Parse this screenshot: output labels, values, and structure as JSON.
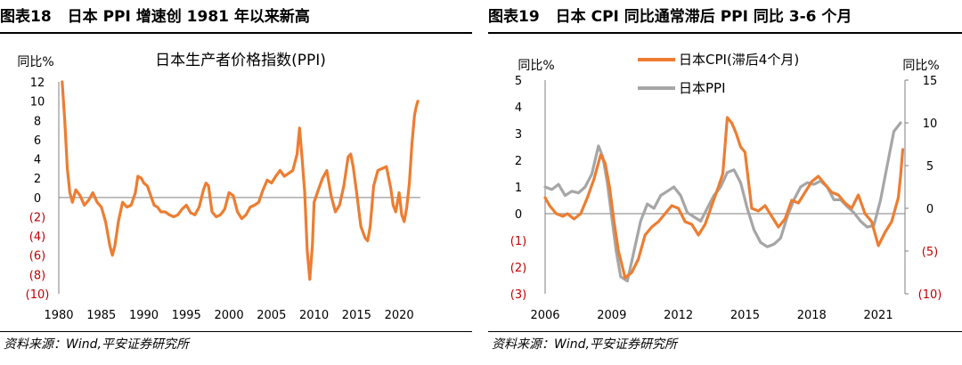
{
  "left": {
    "figure_label": "图表18",
    "title": "日本 PPI 增速创 1981 年以来新高",
    "source": "资料来源：Wind,平安证券研究所"
  },
  "right": {
    "figure_label": "图表19",
    "title": "日本 CPI 同比通常滞后 PPI 同比 3-6 个月",
    "source": "资料来源：Wind,平安证券研究所"
  },
  "chart_data": [
    {
      "type": "line",
      "title": "日本生产者价格指数(PPI)",
      "ylabel": "同比%",
      "xlabel": "",
      "ylim": [
        -10,
        12
      ],
      "xlim": [
        1980,
        2022.5
      ],
      "yticks": [
        12,
        10,
        8,
        6,
        4,
        2,
        0,
        -2,
        -4,
        -6,
        -8,
        -10
      ],
      "ytick_labels": [
        "12",
        "10",
        "8",
        "6",
        "4",
        "2",
        "0",
        "(2)",
        "(4)",
        "(6)",
        "(8)",
        "(10)"
      ],
      "xticks": [
        1980,
        1985,
        1990,
        1995,
        2000,
        2005,
        2010,
        2015,
        2020
      ],
      "xtick_labels": [
        "1980",
        "1985",
        "1990",
        "1995",
        "2000",
        "2005",
        "2010",
        "2015",
        "2020"
      ],
      "series": [
        {
          "name": "",
          "color": "#ed7d31",
          "x": [
            1980.4,
            1980.7,
            1981.0,
            1981.3,
            1981.6,
            1982.0,
            1982.5,
            1983.0,
            1983.5,
            1984.0,
            1984.5,
            1985.0,
            1985.5,
            1986.0,
            1986.3,
            1986.6,
            1987.0,
            1987.5,
            1988.0,
            1988.5,
            1989.0,
            1989.3,
            1989.7,
            1990.0,
            1990.4,
            1990.8,
            1991.2,
            1991.6,
            1992.0,
            1992.5,
            1993.0,
            1993.5,
            1994.0,
            1994.5,
            1995.0,
            1995.5,
            1996.0,
            1996.5,
            1997.0,
            1997.3,
            1997.6,
            1998.0,
            1998.5,
            1999.0,
            1999.5,
            2000.0,
            2000.5,
            2001.0,
            2001.5,
            2002.0,
            2002.5,
            2003.0,
            2003.5,
            2004.0,
            2004.5,
            2005.0,
            2005.5,
            2006.0,
            2006.5,
            2007.0,
            2007.5,
            2008.0,
            2008.3,
            2008.6,
            2008.9,
            2009.2,
            2009.5,
            2009.8,
            2010.0,
            2010.5,
            2011.0,
            2011.5,
            2012.0,
            2012.5,
            2013.0,
            2013.5,
            2014.0,
            2014.3,
            2014.6,
            2015.0,
            2015.5,
            2016.0,
            2016.3,
            2016.6,
            2017.0,
            2017.5,
            2018.0,
            2018.5,
            2019.0,
            2019.3,
            2019.6,
            2020.0,
            2020.3,
            2020.6,
            2020.9,
            2021.2,
            2021.5,
            2021.8,
            2022.0,
            2022.2
          ],
          "y": [
            12,
            8,
            3,
            0.5,
            -0.5,
            0.8,
            0.2,
            -0.8,
            -0.3,
            0.5,
            -0.5,
            -1,
            -2.5,
            -5,
            -6,
            -5,
            -2.5,
            -0.5,
            -1,
            -0.8,
            0.5,
            2.2,
            2.0,
            1.5,
            1.2,
            0.2,
            -0.8,
            -1,
            -1.5,
            -1.5,
            -1.8,
            -2,
            -1.8,
            -1.2,
            -0.8,
            -1.6,
            -1.8,
            -1.0,
            0.8,
            1.5,
            1.2,
            -1.5,
            -2.0,
            -1.8,
            -1.2,
            0.5,
            0.2,
            -1.5,
            -2.2,
            -1.8,
            -1,
            -0.8,
            -0.5,
            0.8,
            1.8,
            1.5,
            2.2,
            2.8,
            2.2,
            2.5,
            2.8,
            4.5,
            7.2,
            4.0,
            0.5,
            -5.5,
            -8.5,
            -5,
            -0.5,
            0.8,
            2.0,
            2.8,
            0.2,
            -1.5,
            -0.8,
            1.2,
            4.2,
            4.5,
            3.2,
            0.5,
            -3,
            -4.2,
            -4.5,
            -3.0,
            1.2,
            2.8,
            3.0,
            3.2,
            1.0,
            -0.8,
            -1.5,
            0.5,
            -1.8,
            -2.5,
            -1.0,
            1.5,
            5.5,
            8.5,
            9.4,
            10.0
          ]
        }
      ]
    },
    {
      "type": "line",
      "ylabel_left": "同比%",
      "ylabel_right": "同比%",
      "xlabel": "",
      "ylim_left": [
        -3,
        5
      ],
      "ylim_right": [
        -10,
        15
      ],
      "xlim": [
        2006,
        2022.2
      ],
      "yticks_left": [
        5,
        4,
        3,
        2,
        1,
        0,
        -1,
        -2,
        -3
      ],
      "ytick_labels_left": [
        "5",
        "4",
        "3",
        "2",
        "1",
        "0",
        "(1)",
        "(2)",
        "(3)"
      ],
      "yticks_right": [
        15,
        10,
        5,
        0,
        -5,
        -10
      ],
      "ytick_labels_right": [
        "15",
        "10",
        "5",
        "0",
        "(5)",
        "(10)"
      ],
      "xticks": [
        2006,
        2009,
        2012,
        2015,
        2018,
        2021
      ],
      "xtick_labels": [
        "2006",
        "2009",
        "2012",
        "2015",
        "2018",
        "2021"
      ],
      "legend": "top-left",
      "series": [
        {
          "name": "日本CPI(滞后4个月)",
          "axis": "left",
          "color": "#ed7d31",
          "x": [
            2006.0,
            2006.2,
            2006.5,
            2006.8,
            2007.0,
            2007.3,
            2007.6,
            2007.9,
            2008.2,
            2008.5,
            2008.7,
            2008.9,
            2009.1,
            2009.3,
            2009.6,
            2009.9,
            2010.2,
            2010.5,
            2010.8,
            2011.1,
            2011.4,
            2011.7,
            2012.0,
            2012.3,
            2012.6,
            2012.9,
            2013.2,
            2013.5,
            2013.8,
            2014.0,
            2014.2,
            2014.4,
            2014.6,
            2014.8,
            2015.0,
            2015.3,
            2015.6,
            2015.9,
            2016.2,
            2016.5,
            2016.8,
            2017.1,
            2017.4,
            2017.7,
            2018.0,
            2018.3,
            2018.6,
            2018.9,
            2019.2,
            2019.5,
            2019.8,
            2020.1,
            2020.4,
            2020.7,
            2021.0,
            2021.3,
            2021.6,
            2021.9,
            2022.0,
            2022.1
          ],
          "y": [
            0.6,
            0.3,
            0.0,
            -0.1,
            0.0,
            -0.2,
            0.0,
            0.6,
            1.3,
            2.2,
            1.9,
            1.0,
            -0.3,
            -1.4,
            -2.4,
            -2.2,
            -1.7,
            -0.8,
            -0.5,
            -0.3,
            0.0,
            0.3,
            0.2,
            -0.3,
            -0.4,
            -0.8,
            -0.4,
            0.3,
            1.0,
            1.5,
            3.6,
            3.4,
            3.0,
            2.5,
            2.3,
            0.2,
            0.1,
            0.3,
            -0.1,
            -0.5,
            -0.2,
            0.5,
            0.4,
            0.8,
            1.2,
            1.4,
            1.1,
            0.8,
            0.7,
            0.4,
            0.2,
            0.7,
            0.0,
            -0.3,
            -1.2,
            -0.7,
            -0.3,
            0.6,
            1.4,
            2.4
          ]
        },
        {
          "name": "日本PPI",
          "axis": "right",
          "color": "#a6a6a6",
          "x": [
            2006.0,
            2006.3,
            2006.6,
            2006.9,
            2007.2,
            2007.5,
            2007.8,
            2008.1,
            2008.4,
            2008.6,
            2008.8,
            2009.0,
            2009.2,
            2009.4,
            2009.7,
            2010.0,
            2010.3,
            2010.6,
            2010.9,
            2011.2,
            2011.5,
            2011.8,
            2012.1,
            2012.4,
            2012.7,
            2013.0,
            2013.3,
            2013.6,
            2013.9,
            2014.2,
            2014.5,
            2014.8,
            2015.1,
            2015.4,
            2015.7,
            2016.0,
            2016.3,
            2016.6,
            2016.9,
            2017.2,
            2017.5,
            2017.8,
            2018.1,
            2018.4,
            2018.7,
            2019.0,
            2019.3,
            2019.6,
            2019.9,
            2020.2,
            2020.5,
            2020.8,
            2021.1,
            2021.4,
            2021.7,
            2022.0
          ],
          "y": [
            2.5,
            2.2,
            2.8,
            1.5,
            2.0,
            1.8,
            2.5,
            4.0,
            7.3,
            6.0,
            3.0,
            -1.0,
            -5.0,
            -8.0,
            -8.5,
            -5.0,
            -1.5,
            0.5,
            0.0,
            1.5,
            2.0,
            2.5,
            1.5,
            -0.5,
            -1.0,
            -1.5,
            0.0,
            1.5,
            2.5,
            4.2,
            4.5,
            3.0,
            0.0,
            -2.5,
            -4.0,
            -4.5,
            -4.2,
            -3.5,
            -1.0,
            1.0,
            2.5,
            3.0,
            2.8,
            3.2,
            2.5,
            1.0,
            1.0,
            0.2,
            -0.5,
            -1.5,
            -2.2,
            -2.0,
            1.0,
            5.0,
            9.0,
            10.0
          ]
        }
      ]
    }
  ]
}
